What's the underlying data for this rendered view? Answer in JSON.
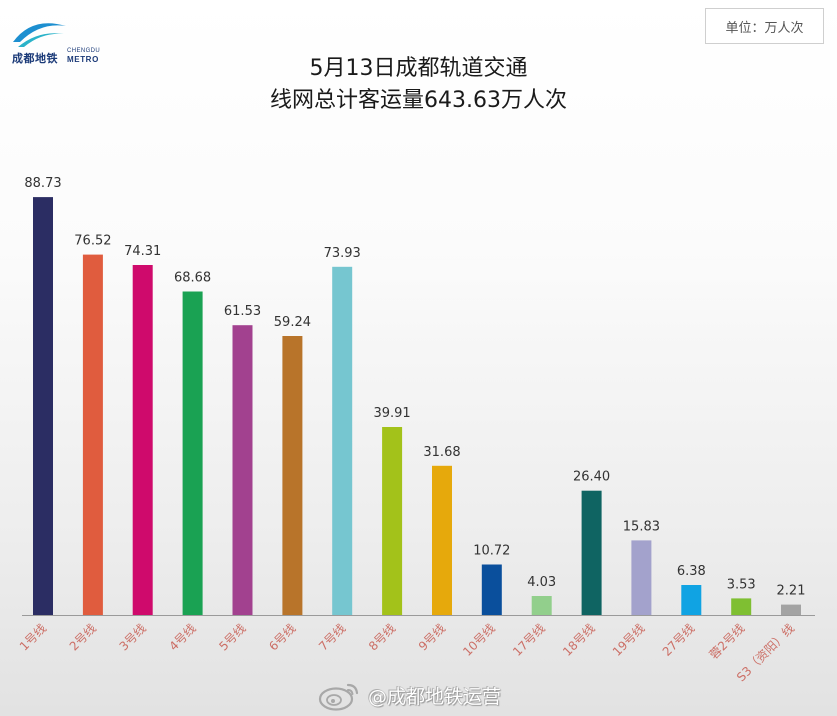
{
  "logo": {
    "cn": "成都地铁",
    "en_top": "CHENGDU",
    "en_bottom": "METRO"
  },
  "unit_box": {
    "label": "单位：万人次"
  },
  "watermark": {
    "text": "@成都地铁运营"
  },
  "colors": {
    "axis": "#9a9a9a",
    "value_text": "#333333",
    "category_text": "#cc6f66",
    "logo_blue": "#1d8fd0",
    "logo_teal": "#2bb3c9",
    "watermark_icon": "#a8a8a8"
  },
  "chart_data": {
    "type": "bar",
    "title": "5月13日成都轨道交通",
    "subtitle": "线网总计客运量643.63万人次",
    "xlabel": "",
    "ylabel": "",
    "categories": [
      "1号线",
      "2号线",
      "3号线",
      "4号线",
      "5号线",
      "6号线",
      "7号线",
      "8号线",
      "9号线",
      "10号线",
      "17号线",
      "18号线",
      "19号线",
      "27号线",
      "蓉2号线",
      "S3（资阳）线"
    ],
    "values": [
      88.73,
      76.52,
      74.31,
      68.68,
      61.53,
      59.24,
      73.93,
      39.91,
      31.68,
      10.72,
      4.03,
      26.4,
      15.83,
      6.38,
      3.53,
      2.21
    ],
    "bar_colors": [
      "#2b2d63",
      "#e05c3e",
      "#cf0a6c",
      "#1aa253",
      "#a2418f",
      "#b8742a",
      "#76c6d0",
      "#a3c21a",
      "#e6a90c",
      "#0a4f9c",
      "#92cf8c",
      "#0f6462",
      "#a3a2cc",
      "#10a3e3",
      "#7fbf32",
      "#a3a3a3"
    ],
    "ylim": [
      0,
      100
    ],
    "grid": false,
    "legend": "none"
  }
}
